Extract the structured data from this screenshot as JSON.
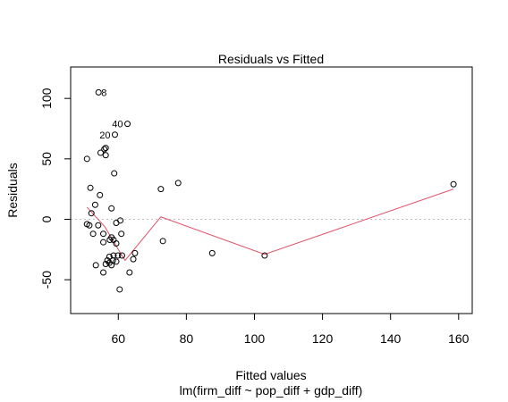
{
  "chart_data": {
    "type": "scatter",
    "title": "Residuals vs Fitted",
    "xlabel": "Fitted values",
    "subtitle": "lm(firm_diff ~ pop_diff + gdp_diff)",
    "ylabel": "Residuals",
    "xlim": [
      46,
      164
    ],
    "ylim": [
      -78,
      126
    ],
    "x_ticks": [
      60,
      80,
      100,
      120,
      140,
      160
    ],
    "y_ticks": [
      -50,
      0,
      50,
      100
    ],
    "reference_line_y": 0,
    "grid": false,
    "colors": {
      "points": "#000000",
      "smoother": "#DF536B",
      "reference": "#BEBEBE"
    },
    "points": [
      {
        "x": 54.2,
        "y": 105,
        "label": "8"
      },
      {
        "x": 62.7,
        "y": 79,
        "label": "40"
      },
      {
        "x": 59.0,
        "y": 70,
        "label": "20"
      },
      {
        "x": 56.3,
        "y": 59
      },
      {
        "x": 55.9,
        "y": 58
      },
      {
        "x": 54.8,
        "y": 55
      },
      {
        "x": 56.3,
        "y": 53
      },
      {
        "x": 50.8,
        "y": 50
      },
      {
        "x": 58.8,
        "y": 38
      },
      {
        "x": 51.8,
        "y": 26
      },
      {
        "x": 54.6,
        "y": 20
      },
      {
        "x": 53.2,
        "y": 12
      },
      {
        "x": 58.0,
        "y": 9
      },
      {
        "x": 52.1,
        "y": 5
      },
      {
        "x": 60.6,
        "y": -1
      },
      {
        "x": 59.4,
        "y": -3
      },
      {
        "x": 50.8,
        "y": -4
      },
      {
        "x": 51.5,
        "y": -5
      },
      {
        "x": 54.1,
        "y": -5
      },
      {
        "x": 52.6,
        "y": -12
      },
      {
        "x": 55.6,
        "y": -12
      },
      {
        "x": 60.9,
        "y": -12
      },
      {
        "x": 58.0,
        "y": -15
      },
      {
        "x": 57.5,
        "y": -17
      },
      {
        "x": 58.6,
        "y": -17
      },
      {
        "x": 59.4,
        "y": -20
      },
      {
        "x": 55.6,
        "y": -19
      },
      {
        "x": 64.9,
        "y": -28
      },
      {
        "x": 59.9,
        "y": -30
      },
      {
        "x": 58.6,
        "y": -30
      },
      {
        "x": 61.1,
        "y": -30
      },
      {
        "x": 57.4,
        "y": -31
      },
      {
        "x": 56.8,
        "y": -34
      },
      {
        "x": 64.4,
        "y": -33
      },
      {
        "x": 58.4,
        "y": -34
      },
      {
        "x": 59.4,
        "y": -35
      },
      {
        "x": 57.4,
        "y": -36
      },
      {
        "x": 58.0,
        "y": -38
      },
      {
        "x": 53.4,
        "y": -38
      },
      {
        "x": 56.3,
        "y": -37
      },
      {
        "x": 55.6,
        "y": -44
      },
      {
        "x": 63.3,
        "y": -44
      },
      {
        "x": 60.4,
        "y": -58
      },
      {
        "x": 72.5,
        "y": 25
      },
      {
        "x": 77.6,
        "y": 30
      },
      {
        "x": 73.1,
        "y": -18
      },
      {
        "x": 87.6,
        "y": -28
      },
      {
        "x": 103.0,
        "y": -30
      },
      {
        "x": 158.5,
        "y": 29
      }
    ],
    "smoother": {
      "x": [
        50.8,
        56.0,
        60.0,
        62.0,
        72.5,
        103.0,
        158.5
      ],
      "y": [
        10,
        -6,
        -25,
        -34,
        2,
        -29,
        25
      ]
    }
  }
}
